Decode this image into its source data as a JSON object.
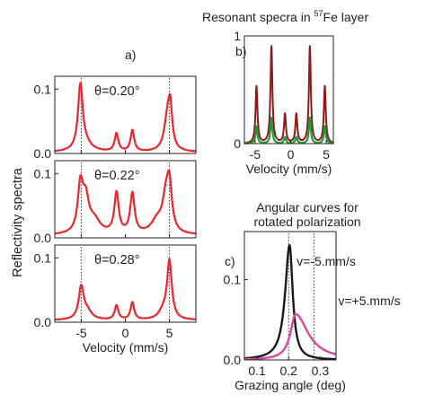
{
  "texts": {
    "left_ylabel": "Reflectivity spectra",
    "panel_a_tag": "a)",
    "panel_b_tag": "b)",
    "panel_c_tag": "c)",
    "b_title_pre": "Resonant specra in ",
    "b_title_sup": "57",
    "b_title_post": "Fe layer",
    "c_title_line1": "Angular curves for",
    "c_title_line2": "rotated polarization"
  },
  "colors": {
    "red": "#e8262b",
    "darkred": "#8b1a1a",
    "green": "#1f9a3a",
    "black": "#1a1a1a",
    "magenta": "#d9479a"
  },
  "chart_data": [
    {
      "id": "a1",
      "type": "line",
      "annotation": "θ=0.20°",
      "ylim": [
        0,
        0.12
      ],
      "yticks": [
        0.0,
        0.1
      ],
      "ytick_labels": [
        "0.0",
        "0.1"
      ],
      "xlim": [
        -8,
        8
      ],
      "xticks": [
        -5,
        0,
        5
      ],
      "xtick_labels": [],
      "vlines": [
        -5,
        5
      ],
      "series": [
        {
          "x": [
            -5.1,
            -1.0,
            0.8,
            4.8,
            5.0
          ],
          "y": [
            0.1,
            0.03,
            0.035,
            0.07,
            0.105
          ]
        }
      ]
    },
    {
      "id": "a2",
      "type": "line",
      "annotation": "θ=0.22°",
      "ylim": [
        0,
        0.12
      ],
      "yticks": [
        0.0,
        0.1
      ],
      "ytick_labels": [
        "0.0",
        "0.1"
      ],
      "xlim": [
        -8,
        8
      ],
      "xticks": [
        -5,
        0,
        5
      ],
      "xtick_labels": [],
      "vlines": [
        -5,
        5
      ],
      "series": [
        {
          "x": [
            -5.1,
            -4.6,
            -1.0,
            0.8,
            4.6,
            5.0
          ],
          "y": [
            0.1,
            0.09,
            0.07,
            0.068,
            0.09,
            0.1
          ]
        }
      ]
    },
    {
      "id": "a3",
      "type": "line",
      "annotation": "θ=0.28°",
      "ylim": [
        0,
        0.12
      ],
      "yticks": [
        0.0,
        0.1
      ],
      "ytick_labels": [
        "0.0",
        "0.1"
      ],
      "xlim": [
        -8,
        8
      ],
      "xticks": [
        -5,
        0,
        5
      ],
      "xtick_labels": [
        "-5",
        "0",
        "5"
      ],
      "xlabel": "Velocity (mm/s)",
      "vlines": [
        -5,
        5
      ],
      "series": [
        {
          "x": [
            -5.0,
            -1.0,
            0.8,
            5.0
          ],
          "y": [
            0.06,
            0.025,
            0.03,
            0.098
          ]
        }
      ]
    },
    {
      "id": "b",
      "type": "line",
      "ylim": [
        0,
        1
      ],
      "yticks": [
        0,
        1
      ],
      "ytick_labels": [
        "0",
        "1"
      ],
      "xlim": [
        -6.5,
        6.0
      ],
      "xticks": [
        -5,
        0,
        5
      ],
      "xtick_labels": [
        "-5",
        "0",
        "5"
      ],
      "xlabel": "Velocity (mm/s)",
      "series": [
        {
          "x": [
            -4.8,
            -2.7,
            -0.8,
            0.8,
            2.7,
            4.8
          ],
          "y": [
            0.53,
            0.9,
            0.27,
            0.27,
            0.9,
            0.53
          ]
        },
        {
          "x": [
            -4.8,
            -2.7,
            -0.8,
            0.8,
            2.7,
            4.8
          ],
          "y": [
            0.16,
            0.24,
            0.06,
            0.06,
            0.24,
            0.16
          ]
        }
      ]
    },
    {
      "id": "c",
      "type": "line",
      "ylim": [
        0,
        0.16
      ],
      "yticks": [
        0.0,
        0.1
      ],
      "ytick_labels": [
        "0.0",
        "0.1"
      ],
      "xlim": [
        0.06,
        0.35
      ],
      "xticks": [
        0.1,
        0.2,
        0.3
      ],
      "xtick_labels": [
        "0.1",
        "0.2",
        "0.3"
      ],
      "xlabel": "Grazing angle (deg)",
      "vlines": [
        0.2,
        0.28
      ],
      "series": [
        {
          "name": "v=-5.mm/s",
          "peak_x": 0.203,
          "peak_y": 0.143
        },
        {
          "name": "v=+5.mm/s",
          "peak_x": 0.222,
          "peak_y": 0.057
        }
      ]
    }
  ]
}
